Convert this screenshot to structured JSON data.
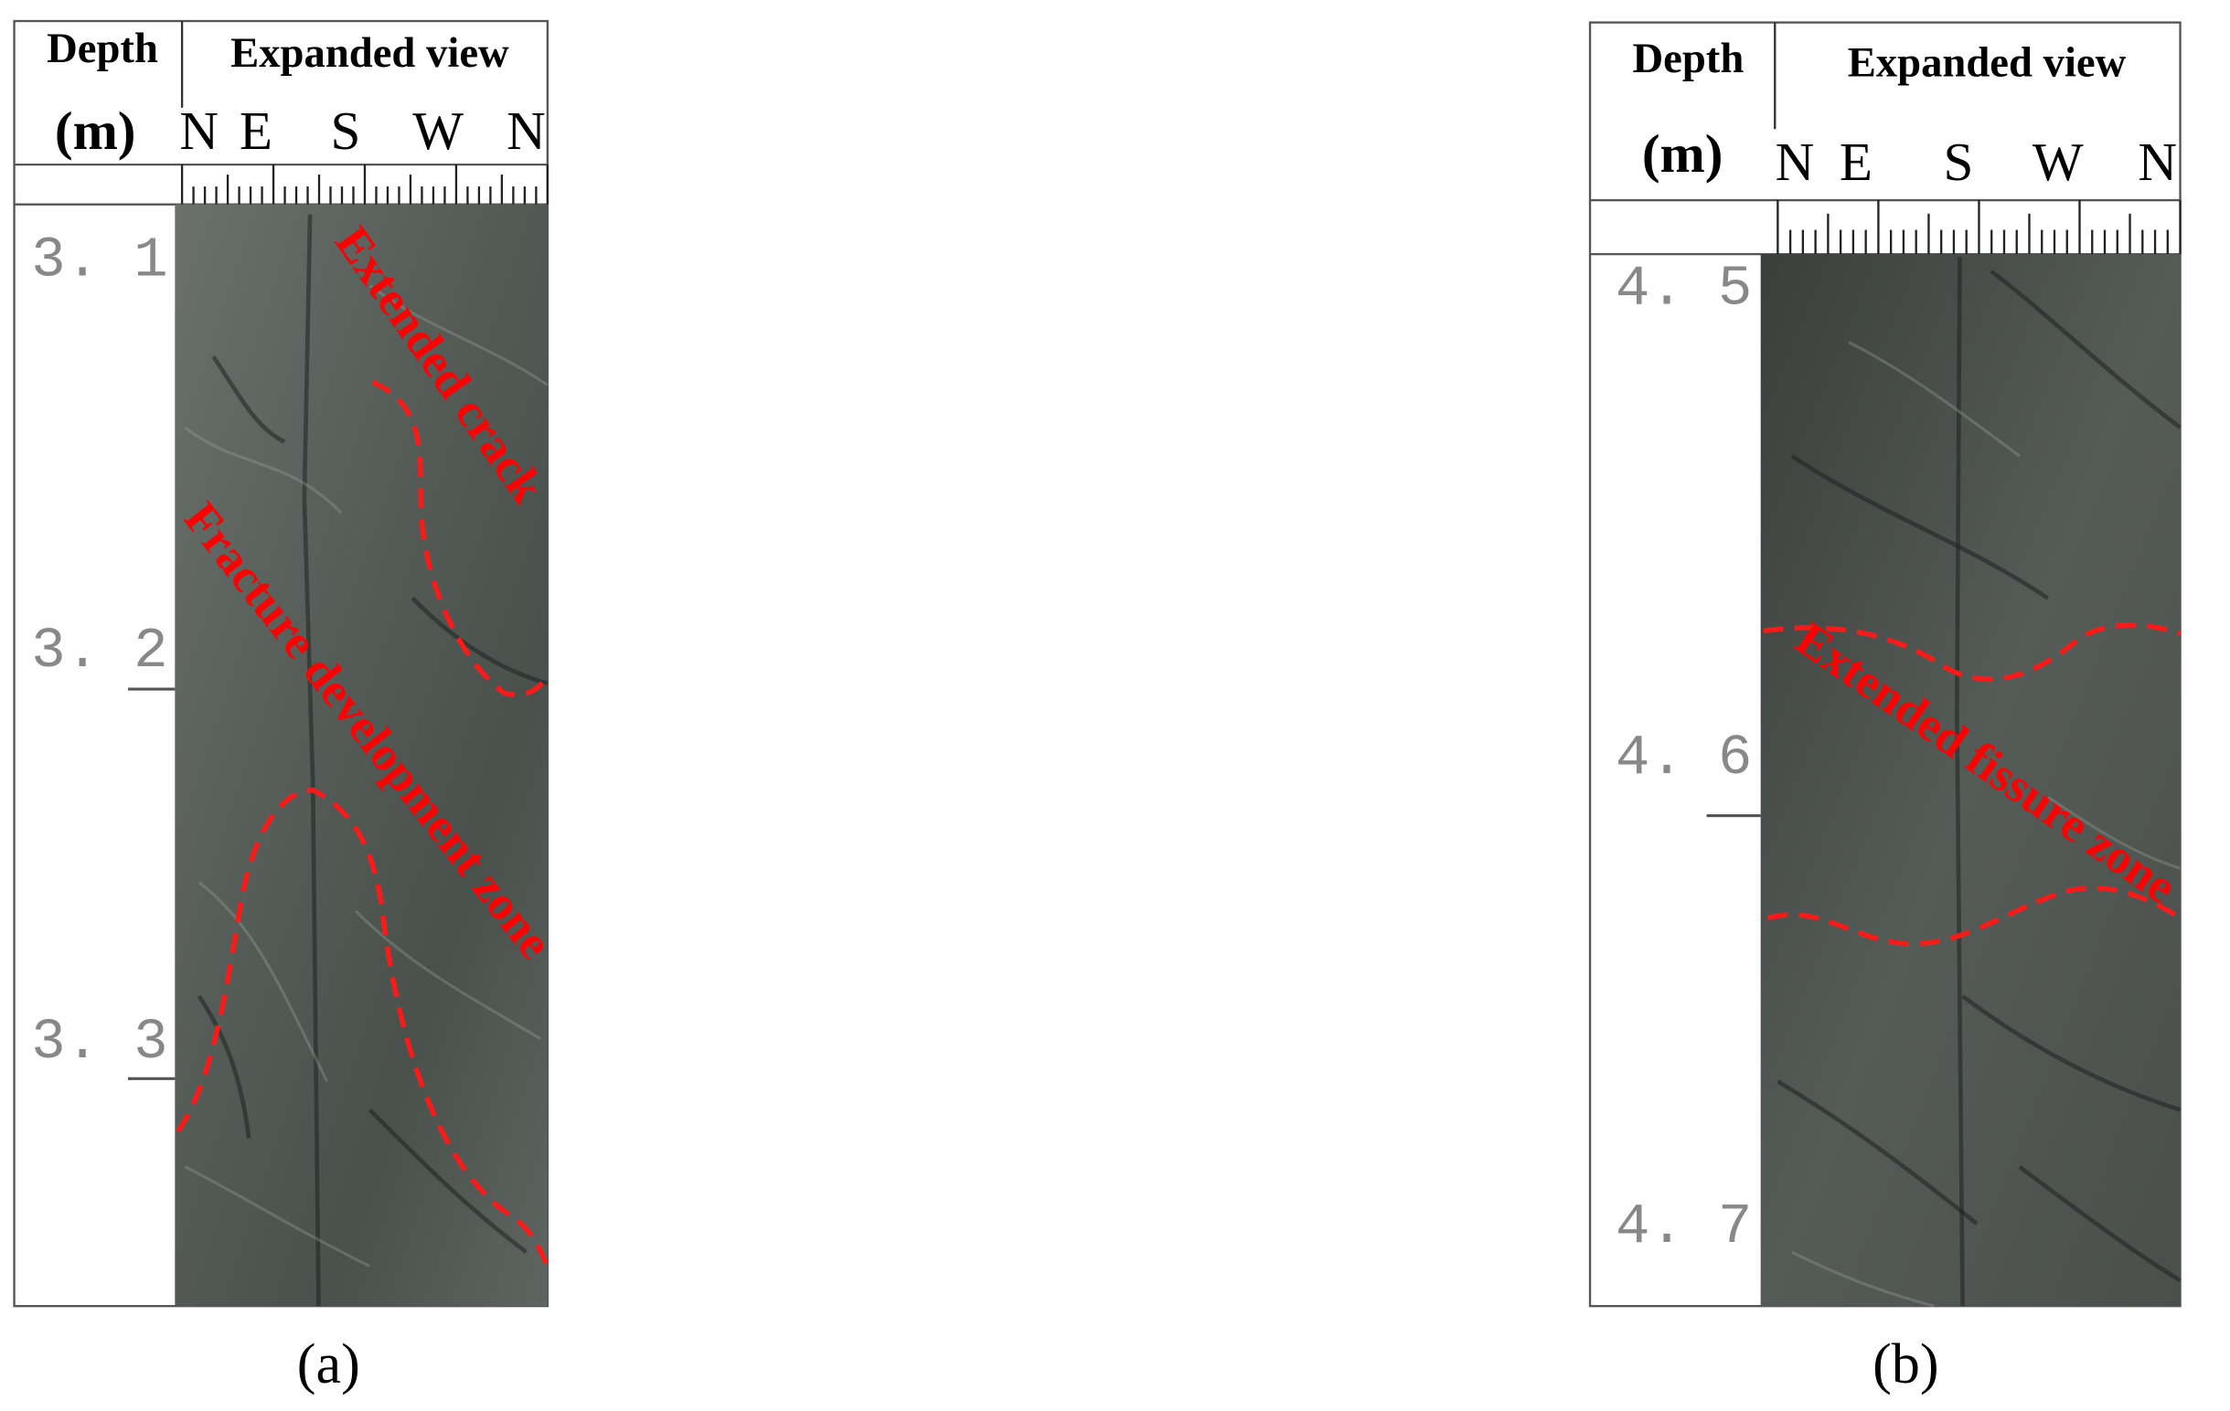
{
  "panels": [
    {
      "header": {
        "depth": "Depth",
        "unit": "(m)",
        "view": "Expanded view",
        "directions": [
          "N",
          "E",
          "S",
          "W",
          "N"
        ]
      },
      "depths": [
        "3. 1",
        "3. 2",
        "3. 3"
      ],
      "annotations": [
        "Extended crack",
        "Fracture development zone"
      ],
      "caption": "(a)"
    },
    {
      "header": {
        "depth": "Depth",
        "unit": "(m)",
        "view": "Expanded view",
        "directions": [
          "N",
          "E",
          "S",
          "W",
          "N"
        ]
      },
      "depths": [
        "4. 5",
        "4. 6",
        "4. 7"
      ],
      "annotations": [
        "Extended fissure zone"
      ],
      "caption": "(b)"
    }
  ]
}
